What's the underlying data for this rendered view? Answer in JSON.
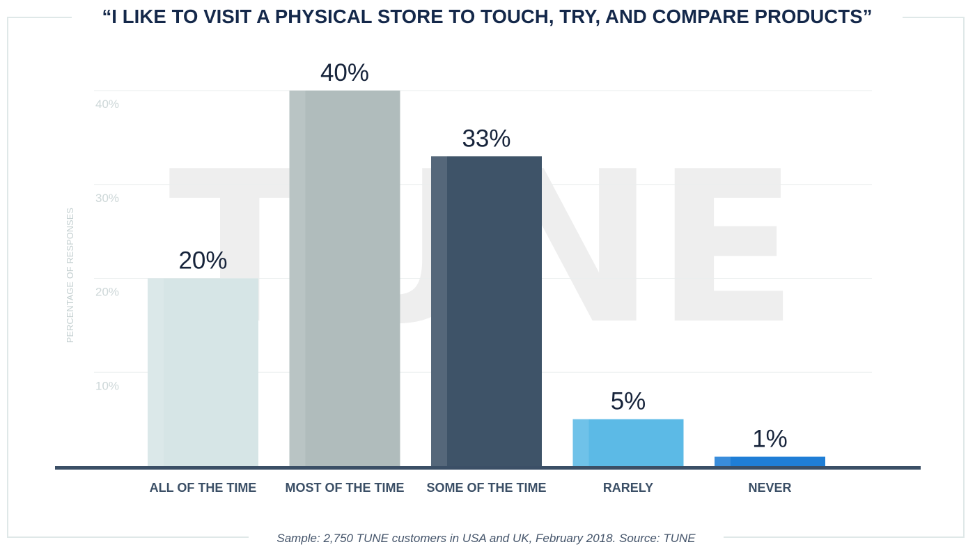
{
  "watermark": "TUNE",
  "chart_data": {
    "type": "bar",
    "title": "“I LIKE TO VISIT A PHYSICAL STORE TO TOUCH, TRY, AND COMPARE PRODUCTS”",
    "ylabel": "PERCENTAGE OF RESPONSES",
    "xlabel": "",
    "ylim": [
      0,
      40
    ],
    "yticks": [
      10,
      20,
      30,
      40
    ],
    "ytick_labels": [
      "10%",
      "20%",
      "30%",
      "40%"
    ],
    "grid": true,
    "categories": [
      "ALL OF THE TIME",
      "MOST OF THE TIME",
      "SOME OF THE TIME",
      "RARELY",
      "NEVER"
    ],
    "values": [
      20,
      40,
      33,
      5,
      1
    ],
    "value_labels": [
      "20%",
      "40%",
      "33%",
      "5%",
      "1%"
    ],
    "colors": [
      "#d6e5e6",
      "#b0bcbc",
      "#3e5368",
      "#5cbae6",
      "#1f7ed6"
    ],
    "source": "Sample: 2,750 TUNE customers in USA and UK, February 2018. Source: TUNE"
  }
}
